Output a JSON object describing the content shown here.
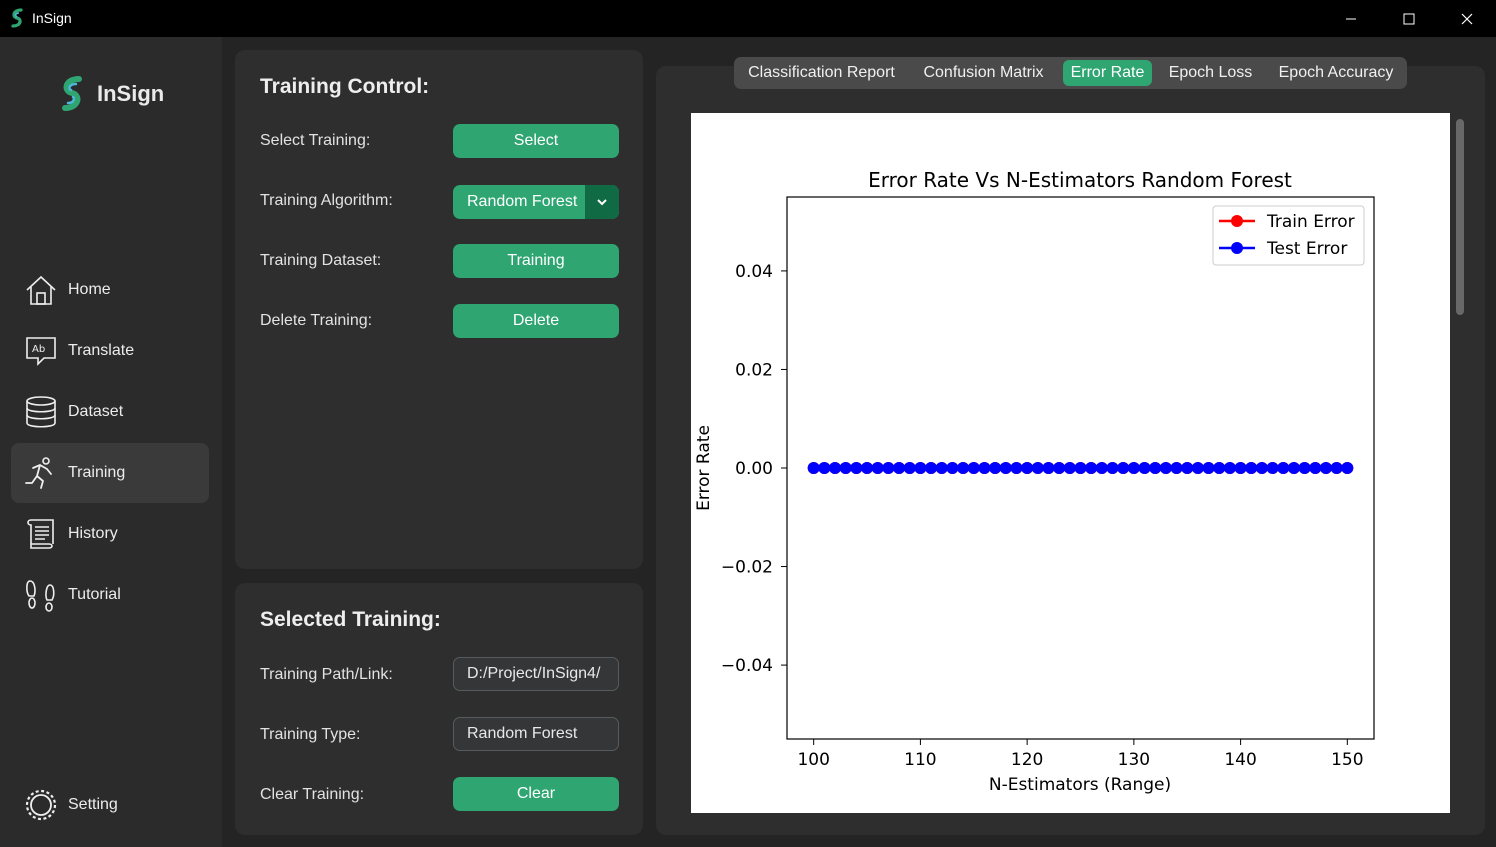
{
  "window": {
    "title": "InSign"
  },
  "sidebar": {
    "logo_text": "InSign",
    "items": [
      {
        "label": "Home",
        "icon": "home-icon"
      },
      {
        "label": "Translate",
        "icon": "translate-icon"
      },
      {
        "label": "Dataset",
        "icon": "database-icon"
      },
      {
        "label": "Training",
        "icon": "running-person-icon",
        "active": true
      },
      {
        "label": "History",
        "icon": "scroll-icon"
      },
      {
        "label": "Tutorial",
        "icon": "footprints-icon"
      }
    ],
    "setting_label": "Setting",
    "translate_icon_text": "Ab"
  },
  "training_control": {
    "title": "Training Control:",
    "select_label": "Select Training:",
    "select_button": "Select",
    "algorithm_label": "Training Algorithm:",
    "algorithm_value": "Random Forest",
    "dataset_label": "Training Dataset:",
    "dataset_button": "Training",
    "delete_label": "Delete Training:",
    "delete_button": "Delete"
  },
  "selected_training": {
    "title": "Selected Training:",
    "path_label": "Training Path/Link:",
    "path_value": "D:/Project/InSign4/",
    "type_label": "Training Type:",
    "type_value": "Random Forest",
    "clear_label": "Clear Training:",
    "clear_button": "Clear"
  },
  "tabs": [
    "Classification Report",
    "Confusion Matrix",
    "Error Rate",
    "Epoch Loss",
    "Epoch Accuracy"
  ],
  "active_tab": "Error Rate",
  "colors": {
    "accent": "#2fa572",
    "accent_dark": "#106a43",
    "train": "#ff0000",
    "test": "#0000ff"
  },
  "chart_data": {
    "type": "line",
    "title": "Error Rate Vs N-Estimators Random Forest",
    "xlabel": "N-Estimators (Range)",
    "ylabel": "Error Rate",
    "xlim": [
      97.5,
      152.5
    ],
    "ylim": [
      -0.055,
      0.055
    ],
    "xticks": [
      100,
      110,
      120,
      130,
      140,
      150
    ],
    "xtick_labels": [
      "100",
      "110",
      "120",
      "130",
      "140",
      "150"
    ],
    "yticks": [
      0.04,
      0.02,
      0.0,
      -0.02,
      -0.04
    ],
    "ytick_labels": [
      "0.04",
      "0.02",
      "0.00",
      "−0.02",
      "−0.04"
    ],
    "x_range": [
      100,
      150
    ],
    "legend_position": "top-right",
    "series": [
      {
        "name": "Train Error",
        "color": "#ff0000",
        "value": 0.0
      },
      {
        "name": "Test Error",
        "color": "#0000ff",
        "value": 0.0
      }
    ]
  }
}
